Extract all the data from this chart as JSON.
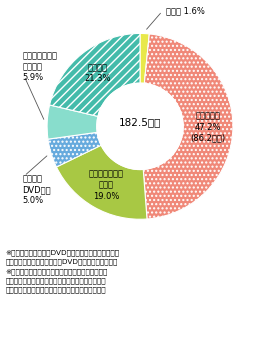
{
  "center_text": "182.5億円",
  "slice_order": [
    {
      "label_inside": "その他 1.6%",
      "label_outside": "その他 1.6%",
      "value": 1.6,
      "color": "#E8E84A",
      "hatch": "",
      "inside": false
    },
    {
      "label_inside": "番組放送権\n47.2%\n(86.2億円)",
      "label_outside": "番組放送権\n47.2%\n(86.2億円)",
      "value": 47.2,
      "color": "#F08878",
      "hatch": "....",
      "inside": true
    },
    {
      "label_inside": "インターネット\n配信権\n19.0%",
      "label_outside": "インターネット\n配信権\n19.0%",
      "value": 19.0,
      "color": "#A8C844",
      "hatch": "",
      "inside": true
    },
    {
      "label_inside": "ビデオ・\nDVD化権\n5.0%",
      "label_outside": "ビデオ・\nDVD化権\n5.0%",
      "value": 5.0,
      "color": "#66AADD",
      "hatch": "....",
      "inside": false
    },
    {
      "label_inside": "フォーマット・\nリメイク\n5.9%",
      "label_outside": "フォーマット・\nリメイク\n5.9%",
      "value": 5.9,
      "color": "#88DDCC",
      "hatch": "",
      "inside": false
    },
    {
      "label_inside": "商品化権\n21.3%",
      "label_outside": "商品化権\n21.3%",
      "value": 21.3,
      "color": "#44BBAA",
      "hatch": "////",
      "inside": true
    }
  ],
  "footnote": "※商品化権、ビデオ・DVD化権には、キャラクターな\n　どの商品の売上、ビデオ・DVDの売上は含まない。\n※各項目に明確に分類できない場合には、番組放送\n　権に分類。また、放送コンテンツ海外輸出額の内\n　訳を未回答の者については、番組放送権に分類。",
  "outer_r": 1.25,
  "inner_r": 0.58,
  "fig_width": 2.8,
  "fig_height": 3.51,
  "dpi": 100
}
